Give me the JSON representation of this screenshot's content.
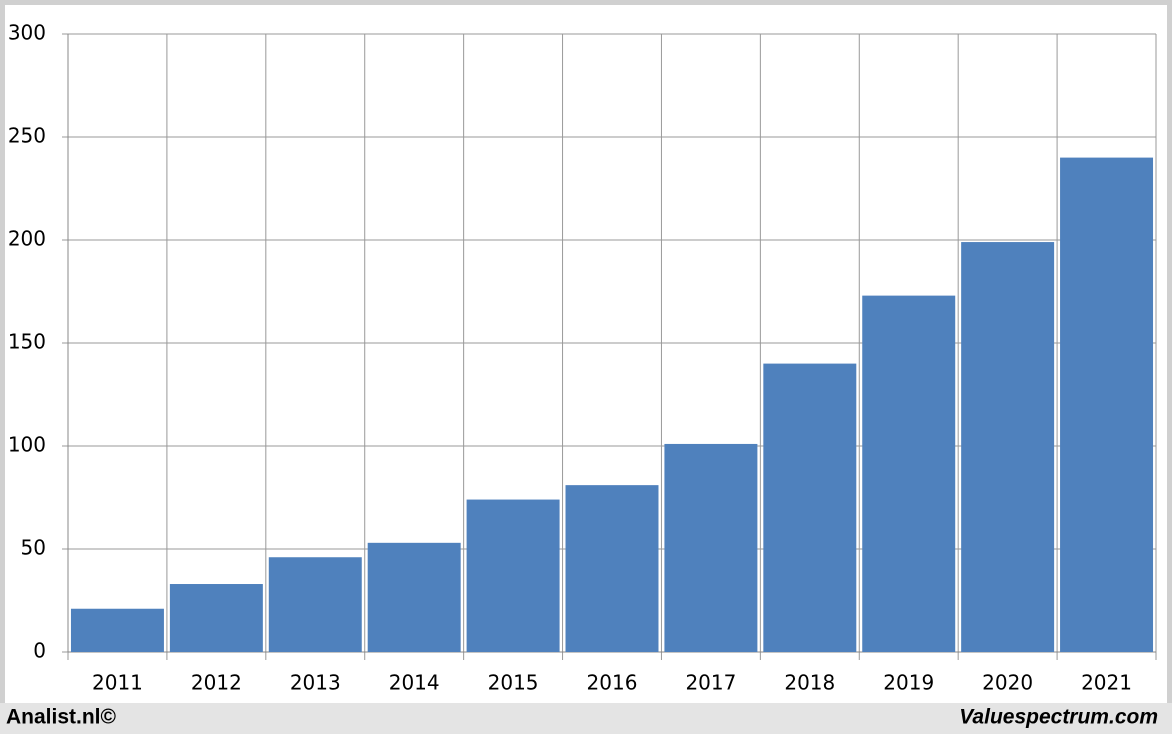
{
  "chart_data": {
    "type": "bar",
    "categories": [
      "2011",
      "2012",
      "2013",
      "2014",
      "2015",
      "2016",
      "2017",
      "2018",
      "2019",
      "2020",
      "2021"
    ],
    "values": [
      21,
      33,
      46,
      53,
      74,
      81,
      101,
      140,
      173,
      199,
      240
    ],
    "color": "#4f81bd",
    "ylim": [
      0,
      300
    ],
    "yticks": [
      0,
      50,
      100,
      150,
      200,
      250,
      300
    ],
    "grid": true
  },
  "footer": {
    "left": "Analist.nl©",
    "right": "Valuespectrum.com"
  }
}
